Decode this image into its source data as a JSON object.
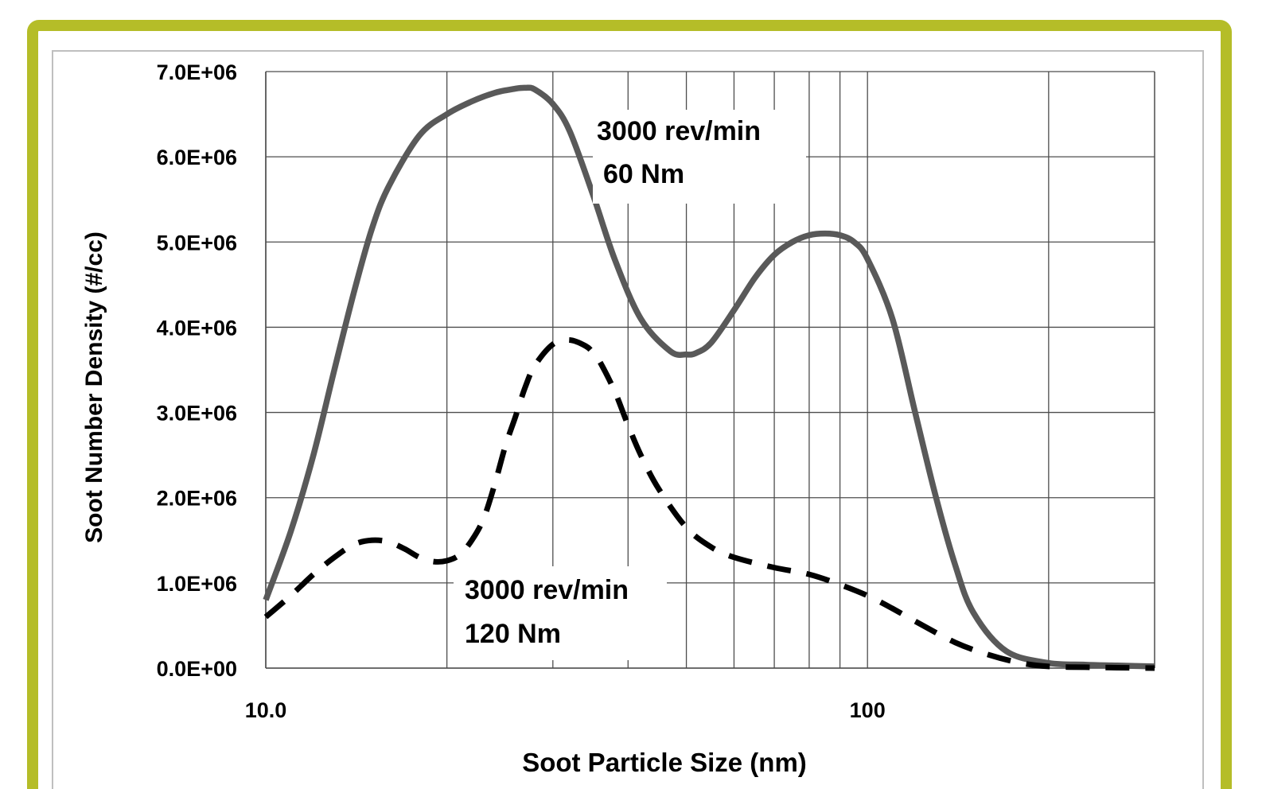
{
  "colors": {
    "frame_border": "#b5bd28",
    "plot_border": "#bfbfbf",
    "grid": "#4d4d4d",
    "series_solid": "#595959",
    "series_dashed": "#000000"
  },
  "chart_data": {
    "type": "line",
    "xlabel": "Soot Particle Size  (nm)",
    "ylabel": "Soot Number Density  (#/cc)",
    "x_scale": "log",
    "xlim": [
      10,
      300
    ],
    "ylim": [
      0,
      7000000
    ],
    "grid": true,
    "x_tick_labels": [
      {
        "value": 10,
        "label": "10.0"
      },
      {
        "value": 100,
        "label": "100"
      }
    ],
    "y_tick_labels": [
      {
        "value": 0,
        "label": "0.0E+00"
      },
      {
        "value": 1000000,
        "label": "1.0E+06"
      },
      {
        "value": 2000000,
        "label": "2.0E+06"
      },
      {
        "value": 3000000,
        "label": "3.0E+06"
      },
      {
        "value": 4000000,
        "label": "4.0E+06"
      },
      {
        "value": 5000000,
        "label": "5.0E+06"
      },
      {
        "value": 6000000,
        "label": "6.0E+06"
      },
      {
        "value": 7000000,
        "label": "7.0E+06"
      }
    ],
    "series": [
      {
        "style": "solid",
        "annotation": [
          "3000 rev/min",
          "60 Nm"
        ],
        "x": [
          10,
          11,
          12,
          13,
          14,
          15,
          16,
          18,
          20,
          22,
          24,
          26,
          27,
          28,
          30,
          32,
          35,
          38,
          42,
          47,
          50,
          52,
          55,
          60,
          65,
          70,
          75,
          80,
          85,
          90,
          95,
          100,
          110,
          120,
          130,
          140,
          150,
          170,
          200,
          230,
          260,
          300
        ],
        "y": [
          800000,
          1600000,
          2500000,
          3500000,
          4400000,
          5150000,
          5650000,
          6250000,
          6500000,
          6650000,
          6750000,
          6800000,
          6810000,
          6790000,
          6620000,
          6300000,
          5550000,
          4800000,
          4100000,
          3720000,
          3680000,
          3700000,
          3820000,
          4200000,
          4580000,
          4850000,
          5000000,
          5080000,
          5100000,
          5080000,
          5000000,
          4800000,
          4100000,
          3000000,
          2000000,
          1200000,
          650000,
          200000,
          60000,
          40000,
          30000,
          20000
        ]
      },
      {
        "style": "dashed",
        "annotation": [
          "3000 rev/min",
          "120 Nm"
        ],
        "x": [
          10,
          11,
          12,
          13,
          14,
          15,
          16,
          17,
          18,
          19,
          20,
          21,
          22,
          23,
          24,
          25,
          26,
          27,
          28,
          30,
          32,
          34,
          35,
          36,
          38,
          40,
          42,
          45,
          50,
          55,
          60,
          70,
          80,
          90,
          100,
          110,
          120,
          140,
          160,
          180,
          200,
          230,
          260,
          300
        ],
        "y": [
          600000,
          850000,
          1100000,
          1300000,
          1450000,
          1500000,
          1480000,
          1400000,
          1300000,
          1250000,
          1260000,
          1330000,
          1500000,
          1750000,
          2150000,
          2600000,
          2950000,
          3300000,
          3550000,
          3800000,
          3850000,
          3780000,
          3700000,
          3580000,
          3250000,
          2850000,
          2500000,
          2100000,
          1650000,
          1420000,
          1300000,
          1180000,
          1100000,
          980000,
          850000,
          700000,
          550000,
          300000,
          150000,
          60000,
          20000,
          10000,
          5000,
          0
        ]
      }
    ]
  }
}
